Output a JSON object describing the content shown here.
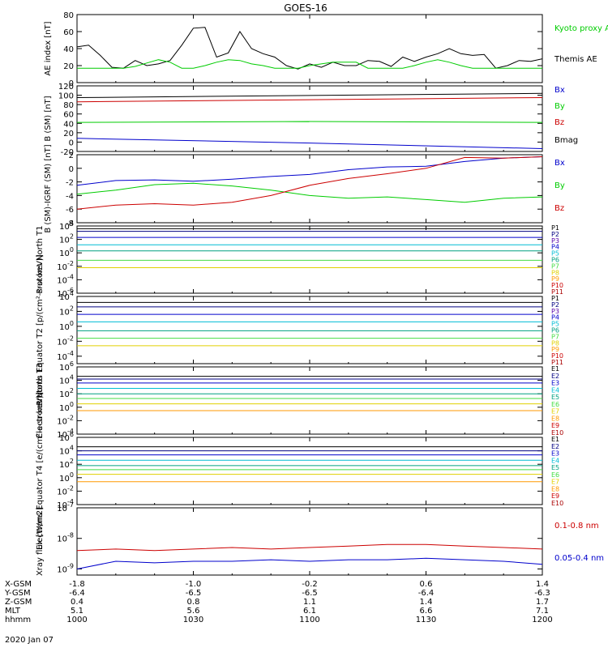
{
  "page": {
    "title": "GOES-16",
    "date_label": "2020 Jan 07"
  },
  "colors": {
    "black": "#000000",
    "green": "#00cc00",
    "blue": "#0000cc",
    "red": "#cc0000",
    "navy": "#000080",
    "purple": "#5500aa",
    "cyan": "#00bcd4",
    "teal": "#00a080",
    "lime": "#44dd44",
    "yellow": "#e0d000",
    "orange": "#ff9900",
    "darkred": "#aa0000"
  },
  "x_axis": {
    "rows": [
      {
        "label": "X-GSM",
        "values": [
          "-1.8",
          "-1.0",
          "-0.2",
          "0.6",
          "1.4"
        ]
      },
      {
        "label": "Y-GSM",
        "values": [
          "-6.4",
          "-6.5",
          "-6.5",
          "-6.4",
          "-6.3"
        ]
      },
      {
        "label": "Z-GSM",
        "values": [
          "0.4",
          "0.8",
          "1.1",
          "1.4",
          "1.7"
        ]
      },
      {
        "label": "MLT",
        "values": [
          "5.1",
          "5.6",
          "6.1",
          "6.6",
          "7.1"
        ]
      },
      {
        "label": "hhmm",
        "values": [
          "1000",
          "1030",
          "1100",
          "1130",
          "1200"
        ]
      }
    ],
    "time_minutes": [
      0,
      30,
      60,
      90,
      120
    ]
  },
  "chart_data": [
    {
      "type": "line",
      "id": "ae",
      "ylabel": "AE index [nT]",
      "ylim": [
        0,
        80
      ],
      "yticks": [
        0,
        20,
        40,
        60,
        80
      ],
      "legend": [
        "Kyoto proxy AE",
        "Themis AE"
      ],
      "series": [
        {
          "name": "Themis AE",
          "color": "black",
          "x": [
            0,
            3,
            6,
            9,
            12,
            15,
            18,
            21,
            24,
            27,
            30,
            33,
            36,
            39,
            42,
            45,
            48,
            51,
            54,
            57,
            60,
            63,
            66,
            69,
            72,
            75,
            78,
            81,
            84,
            87,
            90,
            93,
            96,
            99,
            102,
            105,
            108,
            111,
            114,
            117,
            120
          ],
          "values": [
            42,
            44,
            32,
            18,
            17,
            26,
            20,
            22,
            26,
            44,
            64,
            65,
            30,
            35,
            60,
            40,
            34,
            30,
            20,
            16,
            22,
            18,
            24,
            20,
            20,
            26,
            25,
            19,
            30,
            25,
            30,
            34,
            40,
            34,
            32,
            33,
            17,
            20,
            26,
            25,
            28
          ]
        },
        {
          "name": "Kyoto proxy AE",
          "color": "green",
          "x": [
            0,
            6,
            12,
            15,
            18,
            21,
            24,
            27,
            30,
            33,
            36,
            39,
            42,
            45,
            48,
            51,
            54,
            57,
            60,
            63,
            66,
            69,
            72,
            75,
            78,
            81,
            84,
            87,
            90,
            93,
            96,
            99,
            102,
            105,
            108,
            111,
            114,
            117,
            120
          ],
          "values": [
            17,
            17,
            17,
            19,
            23,
            27,
            24,
            17,
            17,
            20,
            24,
            27,
            26,
            22,
            20,
            17,
            17,
            17,
            20,
            22,
            24,
            24,
            24,
            17,
            17,
            17,
            17,
            20,
            24,
            27,
            24,
            20,
            17,
            17,
            17,
            17,
            17,
            17,
            17
          ]
        }
      ]
    },
    {
      "type": "line",
      "id": "bsm",
      "ylabel": "B (SM) [nT]",
      "ylim": [
        -20,
        120
      ],
      "yticks": [
        -20,
        0,
        20,
        40,
        60,
        80,
        100,
        120
      ],
      "legend": [
        "Bx",
        "By",
        "Bz",
        "Bmag"
      ],
      "series": [
        {
          "name": "Bmag",
          "color": "black",
          "x": [
            0,
            120
          ],
          "values": [
            95,
            104
          ]
        },
        {
          "name": "Bz",
          "color": "red",
          "x": [
            0,
            120
          ],
          "values": [
            86,
            95
          ]
        },
        {
          "name": "By",
          "color": "green",
          "x": [
            0,
            60,
            120
          ],
          "values": [
            42,
            44,
            42
          ]
        },
        {
          "name": "Bx",
          "color": "blue",
          "x": [
            0,
            60,
            120
          ],
          "values": [
            8,
            -2,
            -14
          ]
        }
      ]
    },
    {
      "type": "line",
      "id": "bdiff",
      "ylabel": "B (SM)-IGRF (SM) [nT]",
      "ylim": [
        -8,
        2
      ],
      "yticks": [
        -8,
        -6,
        -4,
        -2,
        0,
        2
      ],
      "legend": [
        "Bx",
        "By",
        "Bz"
      ],
      "series": [
        {
          "name": "Bx",
          "color": "blue",
          "x": [
            0,
            10,
            20,
            30,
            40,
            50,
            60,
            70,
            80,
            90,
            100,
            110,
            120
          ],
          "values": [
            -2.5,
            -1.8,
            -1.7,
            -1.9,
            -1.6,
            -1.2,
            -0.9,
            -0.2,
            0.2,
            0.3,
            1.0,
            1.5,
            1.7
          ]
        },
        {
          "name": "By",
          "color": "green",
          "x": [
            0,
            10,
            20,
            30,
            40,
            50,
            60,
            70,
            80,
            90,
            100,
            110,
            120
          ],
          "values": [
            -3.8,
            -3.2,
            -2.4,
            -2.2,
            -2.6,
            -3.2,
            -4.0,
            -4.4,
            -4.2,
            -4.6,
            -5.0,
            -4.4,
            -4.2
          ]
        },
        {
          "name": "Bz",
          "color": "red",
          "x": [
            0,
            10,
            20,
            30,
            40,
            50,
            60,
            70,
            80,
            90,
            100,
            110,
            120
          ],
          "values": [
            -6.0,
            -5.4,
            -5.2,
            -5.4,
            -5.0,
            -4.0,
            -2.5,
            -1.5,
            -0.8,
            0.0,
            1.6,
            1.5,
            1.7
          ]
        }
      ]
    },
    {
      "type": "line",
      "id": "protons_t1",
      "ylabel": "Protons North T1",
      "scale": "log",
      "ylim_exp": [
        -6,
        4
      ],
      "ytick_exps": [
        -6,
        -4,
        -2,
        0,
        2,
        4
      ],
      "legend": [
        "P1",
        "P2",
        "P3",
        "P4",
        "P5",
        "P6",
        "P7",
        "P8",
        "P9",
        "P10",
        "P11"
      ],
      "legend_colors": [
        "black",
        "navy",
        "purple",
        "blue",
        "cyan",
        "teal",
        "lime",
        "yellow",
        "orange",
        "red",
        "darkred"
      ],
      "levels_exp": [
        3.6,
        3.2,
        2.3,
        1.2,
        0.3,
        -1.1,
        -2.2
      ],
      "level_colors": [
        "black",
        "navy",
        "blue",
        "cyan",
        "teal",
        "lime",
        "yellow"
      ]
    },
    {
      "type": "line",
      "id": "protons_t2",
      "ylabel": "Protons Equator T2 [p/(cm²-s-sr-keV)]",
      "scale": "log",
      "ylim_exp": [
        -5,
        4
      ],
      "ytick_exps": [
        -4,
        -2,
        0,
        2,
        4
      ],
      "legend": [
        "P1",
        "P2",
        "P3",
        "P4",
        "P5",
        "P6",
        "P7",
        "P8",
        "P9",
        "P10",
        "P11"
      ],
      "legend_colors": [
        "black",
        "navy",
        "purple",
        "blue",
        "cyan",
        "teal",
        "lime",
        "yellow",
        "orange",
        "red",
        "darkred"
      ],
      "levels_exp": [
        3.2,
        2.6,
        1.6,
        0.6,
        -0.6,
        -1.6,
        -2.6
      ],
      "level_colors": [
        "black",
        "navy",
        "blue",
        "cyan",
        "teal",
        "lime",
        "yellow"
      ]
    },
    {
      "type": "line",
      "id": "electrons_t3",
      "ylabel": "Electrons North T3",
      "scale": "log",
      "ylim_exp": [
        -4,
        6
      ],
      "ytick_exps": [
        -4,
        -2,
        0,
        2,
        4,
        6
      ],
      "legend": [
        "E1",
        "E2",
        "E3",
        "E4",
        "E5",
        "E6",
        "E7",
        "E8",
        "E9",
        "E10"
      ],
      "legend_colors": [
        "black",
        "navy",
        "blue",
        "cyan",
        "teal",
        "lime",
        "yellow",
        "orange",
        "red",
        "darkred"
      ],
      "levels_exp": [
        4.6,
        4.2,
        3.6,
        2.8,
        2.0,
        1.3,
        0.5,
        -0.5
      ],
      "level_colors": [
        "black",
        "navy",
        "blue",
        "cyan",
        "teal",
        "lime",
        "yellow",
        "orange"
      ]
    },
    {
      "type": "line",
      "id": "electrons_t4",
      "ylabel": "Electrons Equator T4 [e/(cm²-s-sr-keV)]",
      "scale": "log",
      "ylim_exp": [
        -4,
        6
      ],
      "ytick_exps": [
        -4,
        -2,
        0,
        2,
        4,
        6
      ],
      "legend": [
        "E1",
        "E2",
        "E3",
        "E4",
        "E5",
        "E6",
        "E7",
        "E8",
        "E9",
        "E10"
      ],
      "legend_colors": [
        "black",
        "navy",
        "blue",
        "cyan",
        "teal",
        "lime",
        "yellow",
        "orange",
        "red",
        "darkred"
      ],
      "levels_exp": [
        4.6,
        4.0,
        3.4,
        2.6,
        1.8,
        1.2,
        0.5,
        -0.6
      ],
      "level_colors": [
        "black",
        "navy",
        "blue",
        "cyan",
        "teal",
        "lime",
        "yellow",
        "orange"
      ]
    },
    {
      "type": "line",
      "id": "xray",
      "ylabel": "Xray flux [W/m2]",
      "scale": "log",
      "ylim_exp": [
        -9.2,
        -7
      ],
      "ytick_exps": [
        -9,
        -8,
        -7
      ],
      "legend": [
        "0.1-0.8 nm",
        "0.05-0.4 nm"
      ],
      "series": [
        {
          "name": "0.1-0.8 nm",
          "color": "red",
          "x": [
            0,
            10,
            20,
            30,
            40,
            50,
            60,
            70,
            80,
            90,
            100,
            110,
            120
          ],
          "values_exp": [
            -8.4,
            -8.35,
            -8.4,
            -8.35,
            -8.3,
            -8.35,
            -8.3,
            -8.25,
            -8.2,
            -8.2,
            -8.25,
            -8.3,
            -8.35
          ]
        },
        {
          "name": "0.05-0.4 nm",
          "color": "blue",
          "x": [
            0,
            10,
            20,
            30,
            40,
            50,
            60,
            70,
            80,
            90,
            100,
            110,
            120
          ],
          "values_exp": [
            -9.0,
            -8.75,
            -8.8,
            -8.75,
            -8.75,
            -8.7,
            -8.75,
            -8.7,
            -8.7,
            -8.65,
            -8.7,
            -8.75,
            -8.85
          ]
        }
      ]
    }
  ]
}
